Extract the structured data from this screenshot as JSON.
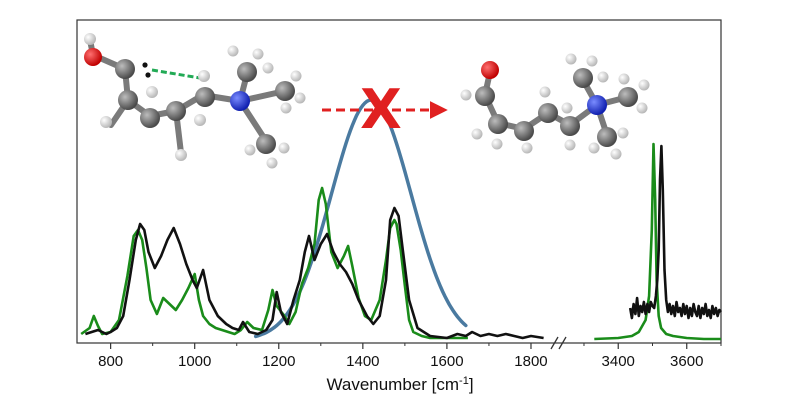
{
  "chart_data": {
    "type": "line",
    "xlabel": "Wavenumber [cm",
    "xlabel_sup": "-1",
    "xlabel_end": "]",
    "broken_x_axis": true,
    "segments": [
      {
        "name_key": "left",
        "xlim": [
          720,
          1850
        ],
        "ticks": [
          800,
          1000,
          1200,
          1400,
          1600,
          1800
        ]
      },
      {
        "name_key": "right",
        "xlim": [
          3230,
          3700
        ],
        "ticks": [
          3400,
          3600
        ]
      }
    ],
    "ylim": [
      0,
      1
    ],
    "grid": false,
    "legend": "none",
    "series": [
      {
        "color": "#1a8c1a",
        "segment": "left",
        "x": [
          730,
          750,
          760,
          770,
          780,
          800,
          820,
          840,
          855,
          865,
          875,
          885,
          895,
          910,
          925,
          940,
          955,
          970,
          985,
          1000,
          1010,
          1020,
          1035,
          1050,
          1065,
          1080,
          1095,
          1110,
          1125,
          1140,
          1160,
          1175,
          1185,
          1195,
          1210,
          1225,
          1240,
          1255,
          1270,
          1285,
          1295,
          1303,
          1312,
          1325,
          1340,
          1355,
          1365,
          1375,
          1390,
          1405,
          1420,
          1440,
          1455,
          1465,
          1475,
          1480,
          1490,
          1500,
          1510,
          1520,
          1540,
          1560,
          1600,
          1650
        ],
        "y": [
          0.03,
          0.06,
          0.12,
          0.07,
          0.03,
          0.04,
          0.1,
          0.32,
          0.52,
          0.55,
          0.5,
          0.36,
          0.2,
          0.13,
          0.21,
          0.18,
          0.15,
          0.2,
          0.26,
          0.33,
          0.2,
          0.12,
          0.08,
          0.06,
          0.05,
          0.04,
          0.03,
          0.05,
          0.09,
          0.06,
          0.05,
          0.15,
          0.25,
          0.17,
          0.13,
          0.08,
          0.14,
          0.28,
          0.36,
          0.48,
          0.7,
          0.76,
          0.68,
          0.44,
          0.36,
          0.42,
          0.47,
          0.37,
          0.21,
          0.12,
          0.1,
          0.2,
          0.4,
          0.56,
          0.6,
          0.58,
          0.45,
          0.27,
          0.1,
          0.04,
          0.02,
          0.01,
          0.01,
          0.01
        ]
      },
      {
        "color": "#111111",
        "segment": "left",
        "x": [
          740,
          770,
          790,
          800,
          815,
          830,
          845,
          860,
          870,
          880,
          890,
          905,
          920,
          935,
          950,
          965,
          980,
          995,
          1005,
          1020,
          1035,
          1055,
          1075,
          1090,
          1105,
          1115,
          1130,
          1150,
          1170,
          1185,
          1195,
          1205,
          1220,
          1235,
          1250,
          1262,
          1272,
          1285,
          1300,
          1315,
          1330,
          1345,
          1360,
          1375,
          1390,
          1410,
          1425,
          1440,
          1455,
          1465,
          1475,
          1485,
          1495,
          1510,
          1530,
          1560,
          1600,
          1625,
          1645,
          1660,
          1680,
          1700,
          1720,
          1740,
          1760,
          1780,
          1800,
          1830
        ],
        "y": [
          0.03,
          0.05,
          0.03,
          0.04,
          0.06,
          0.12,
          0.3,
          0.5,
          0.58,
          0.55,
          0.44,
          0.36,
          0.42,
          0.5,
          0.56,
          0.48,
          0.38,
          0.3,
          0.26,
          0.35,
          0.2,
          0.12,
          0.08,
          0.06,
          0.05,
          0.09,
          0.04,
          0.03,
          0.05,
          0.1,
          0.24,
          0.14,
          0.08,
          0.2,
          0.3,
          0.44,
          0.52,
          0.4,
          0.48,
          0.53,
          0.44,
          0.38,
          0.34,
          0.28,
          0.2,
          0.12,
          0.08,
          0.12,
          0.3,
          0.6,
          0.66,
          0.62,
          0.45,
          0.2,
          0.06,
          0.02,
          0.01,
          0.03,
          0.02,
          0.04,
          0.02,
          0.03,
          0.02,
          0.03,
          0.02,
          0.01,
          0.02,
          0.01
        ]
      },
      {
        "color": "#1a8c1a",
        "segment": "right",
        "x": [
          3330,
          3400,
          3440,
          3460,
          3480,
          3490,
          3498,
          3503,
          3508,
          3512,
          3518,
          3525,
          3540,
          3560,
          3600,
          3650,
          3700
        ],
        "y": [
          0.005,
          0.01,
          0.02,
          0.04,
          0.1,
          0.22,
          0.55,
          0.98,
          0.7,
          0.3,
          0.12,
          0.06,
          0.03,
          0.02,
          0.01,
          0.005,
          0.005
        ],
        "stroke_only_from": 3230
      },
      {
        "color": "#111111",
        "segment": "right",
        "x": [
          3435,
          3440,
          3445,
          3450,
          3455,
          3460,
          3465,
          3470,
          3475,
          3480,
          3485,
          3490,
          3495,
          3500,
          3505,
          3510,
          3514,
          3518,
          3522,
          3526,
          3530,
          3535,
          3540,
          3545,
          3550,
          3555,
          3560,
          3565,
          3570,
          3575,
          3580,
          3585,
          3590,
          3595,
          3600,
          3605,
          3610,
          3615,
          3620,
          3625,
          3630,
          3635,
          3640,
          3645,
          3650,
          3655,
          3660,
          3665,
          3670,
          3675,
          3680,
          3685,
          3690,
          3695,
          3700
        ],
        "y": [
          0.16,
          0.11,
          0.18,
          0.13,
          0.21,
          0.12,
          0.17,
          0.14,
          0.19,
          0.13,
          0.18,
          0.14,
          0.19,
          0.17,
          0.16,
          0.22,
          0.3,
          0.45,
          0.8,
          0.97,
          0.75,
          0.35,
          0.2,
          0.14,
          0.18,
          0.13,
          0.17,
          0.12,
          0.19,
          0.14,
          0.16,
          0.12,
          0.18,
          0.13,
          0.17,
          0.11,
          0.16,
          0.12,
          0.18,
          0.14,
          0.12,
          0.17,
          0.11,
          0.16,
          0.13,
          0.18,
          0.12,
          0.15,
          0.11,
          0.17,
          0.13,
          0.16,
          0.12,
          0.15,
          0.14
        ]
      }
    ],
    "overlay_band": {
      "color": "#4a7aa0",
      "center": 1420,
      "width_sigma": 95,
      "x_from": 1145,
      "x_to": 1645,
      "peak_level": 1.2
    },
    "annotations": {
      "arrow_color": "#e02020",
      "cross_symbol": "X",
      "bond_color": "#22aa55"
    }
  },
  "molecules": {
    "left": {
      "label": ""
    },
    "right": {
      "label": ""
    }
  },
  "colors": {
    "oxygen": "#e8141c",
    "nitrogen": "#2040e0",
    "carbon": "#6e6e6e",
    "hydrogen": "#e6e6e6",
    "frame": "#333333"
  }
}
